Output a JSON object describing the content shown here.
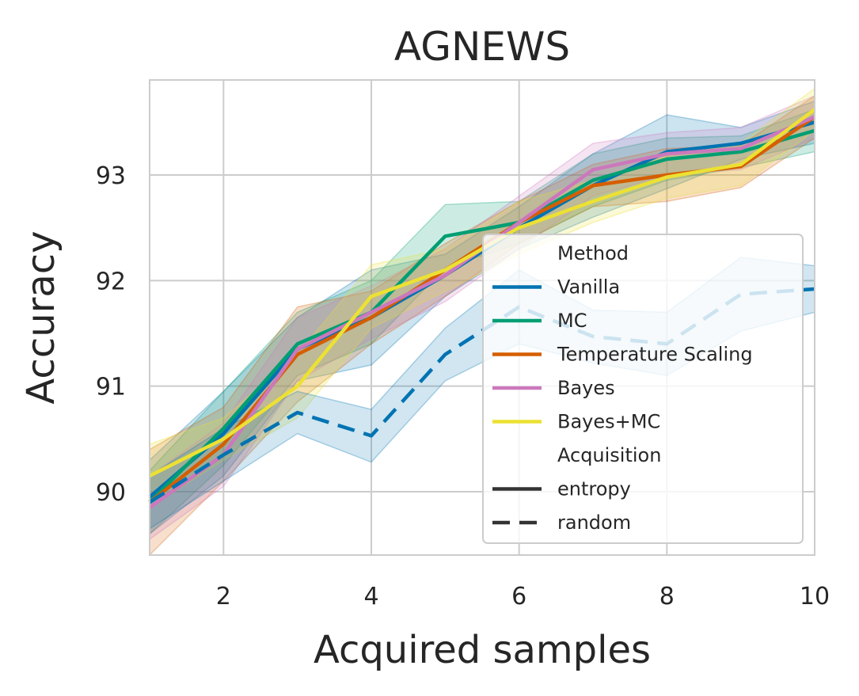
{
  "chart_data": {
    "type": "line",
    "title": "AGNEWS",
    "xlabel": "Acquired samples",
    "ylabel": "Accuracy",
    "xlim": [
      1,
      10
    ],
    "ylim": [
      89.4,
      93.9
    ],
    "xticks": [
      2,
      4,
      6,
      8,
      10
    ],
    "yticks": [
      90,
      91,
      92,
      93
    ],
    "grid": true,
    "legend_placement": "lower-right",
    "x": [
      1,
      2,
      3,
      4,
      5,
      6,
      7,
      8,
      9,
      10
    ],
    "legend": {
      "method_title": "Method",
      "acquisition_title": "Acquisition",
      "styles": [
        {
          "name": "entropy",
          "dash": "solid"
        },
        {
          "name": "random",
          "dash": "dashed"
        }
      ]
    },
    "series": [
      {
        "name": "Vanilla",
        "color": "#0173b2",
        "acquisition": "entropy",
        "values": [
          89.95,
          90.55,
          91.35,
          91.65,
          92.05,
          92.5,
          92.9,
          93.22,
          93.3,
          93.5
        ],
        "band": [
          0.35,
          0.4,
          0.3,
          0.45,
          0.2,
          0.2,
          0.3,
          0.35,
          0.15,
          0.2
        ]
      },
      {
        "name": "MC",
        "color": "#029e73",
        "acquisition": "entropy",
        "values": [
          89.9,
          90.6,
          91.4,
          91.7,
          92.42,
          92.55,
          92.95,
          93.15,
          93.22,
          93.42
        ],
        "band": [
          0.3,
          0.35,
          0.3,
          0.3,
          0.3,
          0.2,
          0.25,
          0.2,
          0.15,
          0.2
        ]
      },
      {
        "name": "Temperature Scaling",
        "color": "#d55e00",
        "acquisition": "entropy",
        "values": [
          89.9,
          90.45,
          91.3,
          91.65,
          92.1,
          92.55,
          92.9,
          93.0,
          93.08,
          93.55
        ],
        "band": [
          0.5,
          0.35,
          0.45,
          0.25,
          0.25,
          0.2,
          0.2,
          0.25,
          0.2,
          0.2
        ]
      },
      {
        "name": "Bayes",
        "color": "#cc78bc",
        "acquisition": "entropy",
        "values": [
          89.85,
          90.35,
          91.35,
          91.7,
          92.05,
          92.55,
          93.05,
          93.2,
          93.25,
          93.55
        ],
        "band": [
          0.3,
          0.3,
          0.3,
          0.25,
          0.25,
          0.25,
          0.25,
          0.2,
          0.2,
          0.2
        ]
      },
      {
        "name": "Bayes+MC",
        "color": "#ece133",
        "acquisition": "entropy",
        "values": [
          90.15,
          90.5,
          91.0,
          91.85,
          92.1,
          92.5,
          92.75,
          92.98,
          93.1,
          93.62
        ],
        "band": [
          0.3,
          0.2,
          0.3,
          0.3,
          0.2,
          0.25,
          0.2,
          0.2,
          0.2,
          0.2
        ]
      },
      {
        "name": "Vanilla",
        "color": "#0173b2",
        "acquisition": "random",
        "legend": false,
        "values": [
          89.9,
          90.35,
          90.75,
          90.53,
          91.3,
          91.75,
          91.47,
          91.4,
          91.87,
          91.92
        ],
        "band": [
          0.25,
          0.25,
          0.2,
          0.25,
          0.25,
          0.35,
          0.25,
          0.3,
          0.35,
          0.22
        ]
      }
    ]
  }
}
